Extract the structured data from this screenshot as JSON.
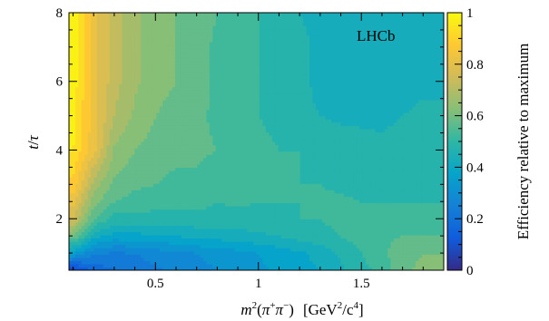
{
  "chart_data": {
    "type": "heatmap",
    "annotation": "LHCb",
    "xlabel": {
      "m": "m",
      "sup2": "2",
      "open": "(",
      "pi1": "π",
      "plus": "+",
      "pi2": "π",
      "minus": "−",
      "close": ")",
      "units": "[GeV",
      "units_sup": "2",
      "slash_c": "/c",
      "c_sup": "4",
      "bracket": "]"
    },
    "ylabel": {
      "t": "t",
      "slash": "/",
      "tau": "τ"
    },
    "colorbar_label": "Efficiency relative to maximum",
    "xlim": [
      0.08,
      1.9
    ],
    "ylim": [
      0.5,
      8
    ],
    "zlim": [
      0,
      1
    ],
    "x_ticks": [
      0.5,
      1,
      1.5
    ],
    "x_tick_labels": [
      "0.5",
      "1",
      "1.5"
    ],
    "y_ticks": [
      2,
      4,
      6,
      8
    ],
    "y_tick_labels": [
      "2",
      "4",
      "6",
      "8"
    ],
    "z_ticks": [
      0,
      0.2,
      0.4,
      0.6,
      0.8,
      1
    ],
    "z_tick_labels": [
      "0",
      "0.2",
      "0.4",
      "0.6",
      "0.8",
      "1"
    ],
    "grid": false,
    "colormap": [
      "#352a87",
      "#0f5cdd",
      "#1481d6",
      "#06a4ca",
      "#2eb7a4",
      "#87bf77",
      "#d1bb59",
      "#fec832",
      "#f9fb0e"
    ],
    "x": [
      0.1,
      0.2,
      0.3,
      0.4,
      0.5,
      0.6,
      0.7,
      0.8,
      0.9,
      1.0,
      1.1,
      1.2,
      1.3,
      1.4,
      1.5,
      1.6,
      1.7,
      1.8,
      1.9
    ],
    "y": [
      0.5,
      1.0,
      1.5,
      2.0,
      2.5,
      3.0,
      3.5,
      4.0,
      5.0,
      6.0,
      7.0,
      8.0
    ],
    "z": [
      [
        0.06,
        0.16,
        0.2,
        0.22,
        0.24,
        0.26,
        0.28,
        0.3,
        0.32,
        0.34,
        0.36,
        0.38,
        0.4,
        0.44,
        0.48,
        0.52,
        0.58,
        0.62,
        0.64
      ],
      [
        0.35,
        0.26,
        0.24,
        0.25,
        0.27,
        0.28,
        0.3,
        0.32,
        0.33,
        0.35,
        0.37,
        0.39,
        0.42,
        0.46,
        0.5,
        0.54,
        0.58,
        0.6,
        0.6
      ],
      [
        0.6,
        0.42,
        0.38,
        0.38,
        0.4,
        0.4,
        0.42,
        0.42,
        0.43,
        0.44,
        0.45,
        0.47,
        0.48,
        0.5,
        0.52,
        0.54,
        0.55,
        0.55,
        0.55
      ],
      [
        0.75,
        0.55,
        0.48,
        0.48,
        0.48,
        0.47,
        0.48,
        0.48,
        0.48,
        0.48,
        0.49,
        0.5,
        0.5,
        0.52,
        0.53,
        0.53,
        0.52,
        0.52,
        0.52
      ],
      [
        0.82,
        0.62,
        0.55,
        0.53,
        0.52,
        0.52,
        0.52,
        0.5,
        0.51,
        0.5,
        0.5,
        0.5,
        0.51,
        0.51,
        0.5,
        0.5,
        0.5,
        0.5,
        0.5
      ],
      [
        0.88,
        0.68,
        0.58,
        0.56,
        0.55,
        0.54,
        0.54,
        0.52,
        0.52,
        0.51,
        0.5,
        0.5,
        0.5,
        0.49,
        0.48,
        0.48,
        0.48,
        0.48,
        0.48
      ],
      [
        0.92,
        0.74,
        0.62,
        0.58,
        0.56,
        0.55,
        0.55,
        0.53,
        0.52,
        0.51,
        0.5,
        0.5,
        0.49,
        0.48,
        0.48,
        0.47,
        0.48,
        0.48,
        0.48
      ],
      [
        0.95,
        0.82,
        0.64,
        0.6,
        0.58,
        0.57,
        0.56,
        0.55,
        0.53,
        0.52,
        0.5,
        0.5,
        0.49,
        0.48,
        0.47,
        0.46,
        0.47,
        0.48,
        0.48
      ],
      [
        0.97,
        0.82,
        0.7,
        0.64,
        0.6,
        0.58,
        0.56,
        0.54,
        0.52,
        0.5,
        0.48,
        0.46,
        0.45,
        0.44,
        0.44,
        0.44,
        0.45,
        0.46,
        0.46
      ],
      [
        0.98,
        0.82,
        0.72,
        0.66,
        0.62,
        0.6,
        0.57,
        0.54,
        0.52,
        0.5,
        0.48,
        0.46,
        0.44,
        0.42,
        0.42,
        0.42,
        0.43,
        0.44,
        0.44
      ],
      [
        0.98,
        0.82,
        0.72,
        0.66,
        0.63,
        0.6,
        0.57,
        0.54,
        0.52,
        0.5,
        0.48,
        0.46,
        0.44,
        0.42,
        0.42,
        0.42,
        0.42,
        0.43,
        0.43
      ],
      [
        0.99,
        0.82,
        0.72,
        0.66,
        0.63,
        0.6,
        0.57,
        0.55,
        0.52,
        0.5,
        0.48,
        0.45,
        0.44,
        0.42,
        0.42,
        0.42,
        0.42,
        0.42,
        0.42
      ]
    ]
  }
}
